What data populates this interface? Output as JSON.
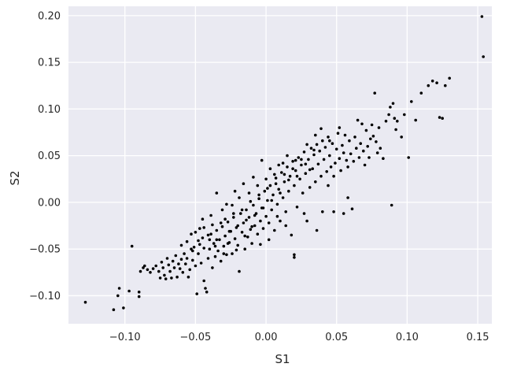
{
  "chart_data": {
    "type": "scatter",
    "title": "",
    "xlabel": "S1",
    "ylabel": "S2",
    "xlim": [
      -0.14,
      0.16
    ],
    "ylim": [
      -0.13,
      0.21
    ],
    "xticks": [
      -0.1,
      -0.05,
      0.0,
      0.05,
      0.1,
      0.15
    ],
    "yticks": [
      -0.1,
      -0.05,
      0.0,
      0.05,
      0.1,
      0.15,
      0.2
    ],
    "xtick_labels": [
      "−0.10",
      "−0.05",
      "0.00",
      "0.05",
      "0.10",
      "0.15"
    ],
    "ytick_labels": [
      "−0.10",
      "−0.05",
      "0.00",
      "0.05",
      "0.10",
      "0.15",
      "0.20"
    ],
    "grid": true,
    "style": {
      "background": "#eaeaf2",
      "grid_color": "#ffffff",
      "point_color": "#000000"
    },
    "points": [
      [
        -0.128,
        -0.107
      ],
      [
        -0.108,
        -0.115
      ],
      [
        -0.101,
        -0.113
      ],
      [
        -0.105,
        -0.1
      ],
      [
        -0.104,
        -0.092
      ],
      [
        -0.097,
        -0.095
      ],
      [
        -0.09,
        -0.101
      ],
      [
        -0.09,
        -0.096
      ],
      [
        -0.095,
        -0.047
      ],
      [
        -0.089,
        -0.074
      ],
      [
        -0.087,
        -0.07
      ],
      [
        -0.086,
        -0.068
      ],
      [
        -0.084,
        -0.072
      ],
      [
        -0.082,
        -0.075
      ],
      [
        -0.08,
        -0.071
      ],
      [
        -0.078,
        -0.068
      ],
      [
        -0.076,
        -0.074
      ],
      [
        -0.075,
        -0.081
      ],
      [
        -0.074,
        -0.064
      ],
      [
        -0.073,
        -0.07
      ],
      [
        -0.072,
        -0.078
      ],
      [
        -0.071,
        -0.082
      ],
      [
        -0.07,
        -0.06
      ],
      [
        -0.069,
        -0.067
      ],
      [
        -0.068,
        -0.074
      ],
      [
        -0.067,
        -0.081
      ],
      [
        -0.066,
        -0.063
      ],
      [
        -0.065,
        -0.07
      ],
      [
        -0.064,
        -0.057
      ],
      [
        -0.063,
        -0.08
      ],
      [
        -0.062,
        -0.066
      ],
      [
        -0.061,
        -0.071
      ],
      [
        -0.06,
        -0.061
      ],
      [
        -0.059,
        -0.075
      ],
      [
        -0.058,
        -0.055
      ],
      [
        -0.057,
        -0.066
      ],
      [
        -0.056,
        -0.06
      ],
      [
        -0.055,
        -0.08
      ],
      [
        -0.054,
        -0.072
      ],
      [
        -0.053,
        -0.05
      ],
      [
        -0.052,
        -0.062
      ],
      [
        -0.051,
        -0.048
      ],
      [
        -0.05,
        -0.068
      ],
      [
        -0.049,
        -0.098
      ],
      [
        -0.048,
        -0.055
      ],
      [
        -0.047,
        -0.045
      ],
      [
        -0.046,
        -0.065
      ],
      [
        -0.045,
        -0.038
      ],
      [
        -0.044,
        -0.084
      ],
      [
        -0.043,
        -0.092
      ],
      [
        -0.042,
        -0.096
      ],
      [
        -0.041,
        -0.06
      ],
      [
        -0.04,
        -0.05
      ],
      [
        -0.039,
        -0.034
      ],
      [
        -0.038,
        -0.07
      ],
      [
        -0.037,
        -0.044
      ],
      [
        -0.036,
        -0.058
      ],
      [
        -0.035,
        -0.03
      ],
      [
        -0.034,
        -0.052
      ],
      [
        -0.033,
        -0.04
      ],
      [
        -0.032,
        -0.063
      ],
      [
        -0.031,
        -0.026
      ],
      [
        -0.03,
        -0.047
      ],
      [
        -0.029,
        -0.036
      ],
      [
        -0.028,
        -0.056
      ],
      [
        -0.027,
        -0.021
      ],
      [
        -0.026,
        -0.043
      ],
      [
        -0.025,
        -0.031
      ],
      [
        -0.024,
        -0.055
      ],
      [
        -0.023,
        -0.016
      ],
      [
        -0.022,
        -0.039
      ],
      [
        -0.021,
        -0.027
      ],
      [
        -0.02,
        -0.046
      ],
      [
        -0.019,
        -0.074
      ],
      [
        -0.018,
        -0.012
      ],
      [
        -0.017,
        -0.032
      ],
      [
        -0.016,
        -0.022
      ],
      [
        -0.015,
        -0.05
      ],
      [
        -0.014,
        -0.008
      ],
      [
        -0.013,
        -0.037
      ],
      [
        -0.012,
        -0.016
      ],
      [
        -0.011,
        -0.029
      ],
      [
        -0.01,
        -0.044
      ],
      [
        -0.009,
        -0.003
      ],
      [
        -0.008,
        -0.025
      ],
      [
        -0.007,
        -0.012
      ],
      [
        -0.006,
        -0.034
      ],
      [
        -0.005,
        0.004
      ],
      [
        -0.004,
        -0.02
      ],
      [
        -0.003,
        -0.006
      ],
      [
        -0.002,
        -0.028
      ],
      [
        -0.001,
        0.012
      ],
      [
        0.0,
        -0.015
      ],
      [
        0.001,
        0.002
      ],
      [
        0.002,
        -0.022
      ],
      [
        0.003,
        0.018
      ],
      [
        0.004,
        -0.008
      ],
      [
        0.005,
        0.008
      ],
      [
        0.006,
        -0.03
      ],
      [
        0.007,
        0.026
      ],
      [
        0.008,
        -0.002
      ],
      [
        0.009,
        0.014
      ],
      [
        0.01,
        -0.02
      ],
      [
        0.011,
        0.032
      ],
      [
        0.012,
        0.005
      ],
      [
        0.013,
        0.022
      ],
      [
        0.014,
        -0.01
      ],
      [
        0.015,
        0.038
      ],
      [
        0.016,
        0.012
      ],
      [
        0.017,
        0.028
      ],
      [
        0.018,
        -0.035
      ],
      [
        0.019,
        0.044
      ],
      [
        0.02,
        0.018
      ],
      [
        0.021,
        0.034
      ],
      [
        0.022,
        -0.005
      ],
      [
        0.023,
        0.048
      ],
      [
        0.024,
        0.025
      ],
      [
        0.025,
        0.04
      ],
      [
        0.026,
        0.01
      ],
      [
        0.027,
        0.054
      ],
      [
        0.028,
        0.031
      ],
      [
        0.029,
        -0.02
      ],
      [
        0.03,
        0.046
      ],
      [
        0.031,
        0.016
      ],
      [
        0.032,
        0.058
      ],
      [
        0.033,
        0.036
      ],
      [
        0.034,
        0.051
      ],
      [
        0.035,
        0.022
      ],
      [
        0.036,
        0.062
      ],
      [
        0.037,
        0.041
      ],
      [
        0.038,
        0.055
      ],
      [
        0.039,
        0.028
      ],
      [
        0.04,
        0.066
      ],
      [
        0.041,
        0.046
      ],
      [
        0.042,
        0.059
      ],
      [
        0.043,
        0.033
      ],
      [
        0.044,
        0.07
      ],
      [
        0.045,
        0.05
      ],
      [
        0.046,
        0.038
      ],
      [
        0.047,
        0.063
      ],
      [
        0.048,
        0.028
      ],
      [
        0.049,
        0.042
      ],
      [
        0.05,
        0.057
      ],
      [
        0.051,
        0.074
      ],
      [
        0.052,
        0.047
      ],
      [
        0.053,
        0.034
      ],
      [
        0.054,
        0.061
      ],
      [
        0.055,
        0.053
      ],
      [
        0.056,
        0.072
      ],
      [
        0.057,
        0.045
      ],
      [
        0.058,
        0.038
      ],
      [
        0.059,
        0.066
      ],
      [
        0.06,
        0.052
      ],
      [
        0.061,
        -0.007
      ],
      [
        0.062,
        0.044
      ],
      [
        0.063,
        0.07
      ],
      [
        0.064,
        0.058
      ],
      [
        0.065,
        0.088
      ],
      [
        0.066,
        0.048
      ],
      [
        0.067,
        0.063
      ],
      [
        0.068,
        0.084
      ],
      [
        0.069,
        0.055
      ],
      [
        0.07,
        0.04
      ],
      [
        0.071,
        0.077
      ],
      [
        0.072,
        0.06
      ],
      [
        0.073,
        0.048
      ],
      [
        0.074,
        0.068
      ],
      [
        0.075,
        0.083
      ],
      [
        0.076,
        0.071
      ],
      [
        0.077,
        0.117
      ],
      [
        0.078,
        0.065
      ],
      [
        0.079,
        0.053
      ],
      [
        0.08,
        0.08
      ],
      [
        0.081,
        0.058
      ],
      [
        0.083,
        0.047
      ],
      [
        0.085,
        0.087
      ],
      [
        0.087,
        0.094
      ],
      [
        0.088,
        0.102
      ],
      [
        0.089,
        -0.003
      ],
      [
        0.09,
        0.106
      ],
      [
        0.091,
        0.09
      ],
      [
        0.092,
        0.078
      ],
      [
        0.093,
        0.087
      ],
      [
        0.096,
        0.07
      ],
      [
        0.098,
        0.094
      ],
      [
        0.101,
        0.048
      ],
      [
        0.103,
        0.108
      ],
      [
        0.106,
        0.088
      ],
      [
        0.11,
        0.117
      ],
      [
        0.115,
        0.125
      ],
      [
        0.118,
        0.13
      ],
      [
        0.121,
        0.128
      ],
      [
        0.123,
        0.091
      ],
      [
        0.125,
        0.09
      ],
      [
        0.127,
        0.125
      ],
      [
        0.13,
        0.133
      ],
      [
        0.153,
        0.199
      ],
      [
        0.154,
        0.156
      ],
      [
        -0.053,
        -0.034
      ],
      [
        -0.05,
        -0.032
      ],
      [
        -0.047,
        -0.028
      ],
      [
        -0.044,
        -0.027
      ],
      [
        -0.041,
        -0.035
      ],
      [
        -0.038,
        -0.024
      ],
      [
        -0.035,
        -0.04
      ],
      [
        -0.032,
        -0.022
      ],
      [
        -0.029,
        -0.018
      ],
      [
        -0.026,
        -0.031
      ],
      [
        -0.023,
        -0.012
      ],
      [
        -0.02,
        -0.025
      ],
      [
        -0.017,
        -0.008
      ],
      [
        -0.014,
        -0.019
      ],
      [
        -0.011,
        0.001
      ],
      [
        -0.008,
        -0.014
      ],
      [
        -0.005,
        0.008
      ],
      [
        -0.002,
        -0.006
      ],
      [
        0.001,
        0.015
      ],
      [
        0.004,
        0.002
      ],
      [
        0.007,
        0.02
      ],
      [
        0.01,
        0.01
      ],
      [
        0.013,
        0.03
      ],
      [
        0.016,
        0.024
      ],
      [
        0.019,
        0.036
      ],
      [
        0.022,
        0.028
      ],
      [
        0.025,
        0.046
      ],
      [
        0.028,
        0.041
      ],
      [
        0.031,
        0.035
      ],
      [
        0.034,
        0.056
      ],
      [
        -0.045,
        -0.018
      ],
      [
        -0.039,
        -0.014
      ],
      [
        -0.031,
        -0.008
      ],
      [
        -0.024,
        -0.003
      ],
      [
        -0.019,
        0.005
      ],
      [
        -0.012,
        0.01
      ],
      [
        -0.006,
        0.018
      ],
      [
        0.0,
        0.025
      ],
      [
        0.006,
        0.03
      ],
      [
        0.012,
        0.042
      ],
      [
        -0.06,
        -0.046
      ],
      [
        -0.056,
        -0.042
      ],
      [
        -0.052,
        -0.052
      ],
      [
        -0.048,
        -0.041
      ],
      [
        -0.044,
        -0.049
      ],
      [
        -0.04,
        -0.04
      ],
      [
        -0.036,
        -0.047
      ],
      [
        -0.03,
        -0.055
      ],
      [
        -0.027,
        -0.044
      ],
      [
        -0.021,
        -0.051
      ],
      [
        -0.015,
        -0.036
      ],
      [
        -0.01,
        -0.026
      ],
      [
        -0.004,
        -0.045
      ],
      [
        0.002,
        -0.04
      ],
      [
        0.008,
        -0.015
      ],
      [
        0.014,
        -0.025
      ],
      [
        0.02,
        -0.056
      ],
      [
        0.02,
        -0.059
      ],
      [
        0.027,
        -0.012
      ],
      [
        0.036,
        -0.03
      ],
      [
        0.04,
        -0.01
      ],
      [
        0.044,
        0.018
      ],
      [
        0.048,
        -0.01
      ],
      [
        0.055,
        -0.012
      ],
      [
        0.058,
        0.005
      ],
      [
        -0.035,
        0.01
      ],
      [
        -0.028,
        -0.002
      ],
      [
        -0.022,
        0.012
      ],
      [
        -0.016,
        0.02
      ],
      [
        -0.009,
        0.027
      ],
      [
        -0.003,
        0.045
      ],
      [
        0.003,
        0.036
      ],
      [
        0.009,
        0.04
      ],
      [
        0.015,
        0.05
      ],
      [
        0.021,
        0.045
      ],
      [
        0.029,
        0.062
      ],
      [
        0.035,
        0.072
      ],
      [
        0.039,
        0.079
      ],
      [
        0.045,
        0.066
      ],
      [
        0.052,
        0.08
      ]
    ]
  }
}
